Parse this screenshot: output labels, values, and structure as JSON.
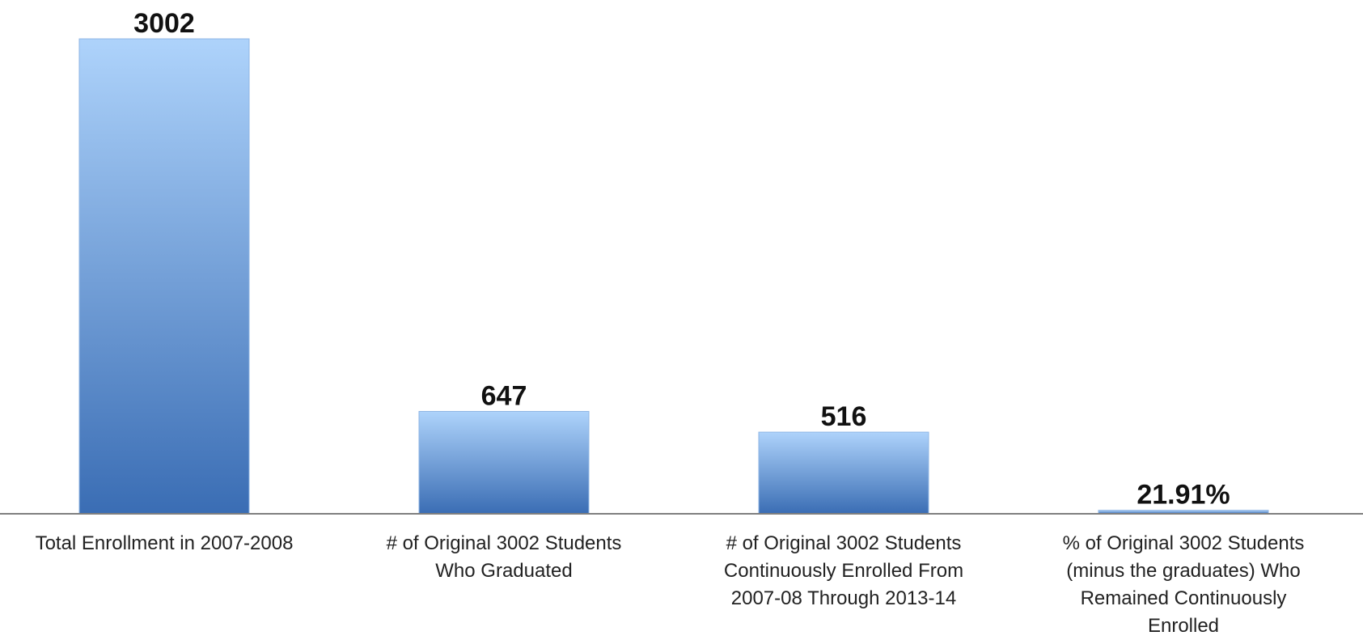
{
  "chart_data": {
    "type": "bar",
    "categories": [
      "Total Enrollment in 2007-2008",
      "# of Original 3002 Students Who Graduated",
      "# of Original 3002 Students Continuously Enrolled From 2007-08 Through 2013-14",
      "% of Original 3002 Students (minus the graduates) Who Remained  Continuously Enrolled"
    ],
    "category_lines": [
      [
        "Total Enrollment in 2007-2008"
      ],
      [
        "# of Original 3002 Students",
        "Who Graduated"
      ],
      [
        "# of Original 3002 Students",
        "Continuously Enrolled From",
        "2007-08 Through 2013-14"
      ],
      [
        "% of Original 3002 Students",
        "(minus the graduates) Who",
        "Remained  Continuously",
        "Enrolled"
      ]
    ],
    "values": [
      3002,
      647,
      516,
      21.91
    ],
    "data_labels": [
      "3002",
      "647",
      "516",
      "21.91%"
    ],
    "ylim": [
      0,
      3002
    ],
    "grid": false,
    "legend": "none",
    "colors": {
      "bar_top": "#aed3fb",
      "bar_bottom": "#3a6db4",
      "bar_edge": "#8fb6e4",
      "axis": "#7f7f7f",
      "label_text": "#111111"
    }
  }
}
